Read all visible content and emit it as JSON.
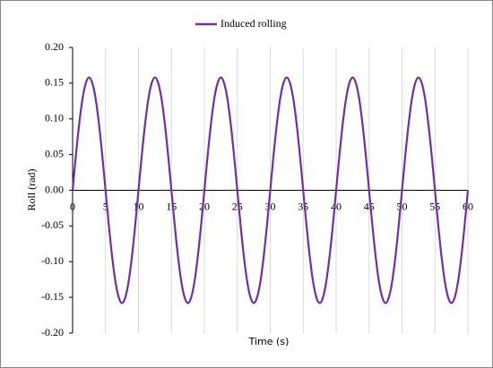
{
  "chart_data": {
    "type": "line",
    "x_label": "Time (s)",
    "y_label": "Roll (rad)",
    "legend": "top",
    "grid": "x",
    "series": [
      {
        "name": "Induced rolling",
        "color": "#7030a0",
        "values": [
          0,
          0.049,
          0.093,
          0.128,
          0.15,
          0.158,
          0.15,
          0.128,
          0.093,
          0.049,
          0,
          -0.049,
          -0.093,
          -0.128,
          -0.15,
          -0.158,
          -0.15,
          -0.128,
          -0.093,
          -0.049,
          0,
          0.049,
          0.093,
          0.128,
          0.15,
          0.158,
          0.15,
          0.128,
          0.093,
          0.049,
          0,
          -0.049,
          -0.093,
          -0.128,
          -0.15,
          -0.158,
          -0.15,
          -0.128,
          -0.093,
          -0.049,
          0,
          0.049,
          0.093,
          0.128,
          0.15,
          0.158,
          0.15,
          0.128,
          0.093,
          0.049,
          0,
          -0.049,
          -0.093,
          -0.128,
          -0.15,
          -0.158,
          -0.15,
          -0.128,
          -0.093,
          -0.049,
          0,
          0.049,
          0.093,
          0.128,
          0.15,
          0.158,
          0.15,
          0.128,
          0.093,
          0.049,
          0,
          -0.049,
          -0.093,
          -0.128,
          -0.15,
          -0.158,
          -0.15,
          -0.128,
          -0.093,
          -0.049,
          0,
          0.049,
          0.093,
          0.128,
          0.15,
          0.158,
          0.15,
          0.128,
          0.093,
          0.049,
          0,
          -0.049,
          -0.093,
          -0.128,
          -0.15,
          -0.158,
          -0.15,
          -0.128,
          -0.093,
          -0.049,
          0,
          0.049,
          0.093,
          0.128,
          0.15,
          0.158,
          0.15,
          0.128,
          0.093,
          0.049,
          0,
          -0.049,
          -0.093,
          -0.128,
          -0.15,
          -0.158,
          -0.15,
          -0.128,
          -0.093,
          -0.049,
          0
        ]
      }
    ],
    "x": [
      0,
      0.5,
      1,
      1.5,
      2,
      2.5,
      3,
      3.5,
      4,
      4.5,
      5,
      5.5,
      6,
      6.5,
      7,
      7.5,
      8,
      8.5,
      9,
      9.5,
      10,
      10.5,
      11,
      11.5,
      12,
      12.5,
      13,
      13.5,
      14,
      14.5,
      15,
      15.5,
      16,
      16.5,
      17,
      17.5,
      18,
      18.5,
      19,
      19.5,
      20,
      20.5,
      21,
      21.5,
      22,
      22.5,
      23,
      23.5,
      24,
      24.5,
      25,
      25.5,
      26,
      26.5,
      27,
      27.5,
      28,
      28.5,
      29,
      29.5,
      30,
      30.5,
      31,
      31.5,
      32,
      32.5,
      33,
      33.5,
      34,
      34.5,
      35,
      35.5,
      36,
      36.5,
      37,
      37.5,
      38,
      38.5,
      39,
      39.5,
      40,
      40.5,
      41,
      41.5,
      42,
      42.5,
      43,
      43.5,
      44,
      44.5,
      45,
      45.5,
      46,
      46.5,
      47,
      47.5,
      48,
      48.5,
      49,
      49.5,
      50,
      50.5,
      51,
      51.5,
      52,
      52.5,
      53,
      53.5,
      54,
      54.5,
      55,
      55.5,
      56,
      56.5,
      57,
      57.5,
      58,
      58.5,
      59,
      59.5,
      60
    ],
    "xlim": [
      0,
      60
    ],
    "xticks": [
      0,
      5,
      10,
      15,
      20,
      25,
      30,
      35,
      40,
      45,
      50,
      55,
      60
    ],
    "ylim": [
      -0.2,
      0.2
    ],
    "yticks": [
      {
        "value": 0.2,
        "label": "0.20"
      },
      {
        "value": 0.15,
        "label": "0.15"
      },
      {
        "value": 0.1,
        "label": "0.10"
      },
      {
        "value": 0.05,
        "label": "0.05"
      },
      {
        "value": 0,
        "label": "0.00"
      },
      {
        "value": -0.05,
        "label": "-0.05"
      },
      {
        "value": -0.1,
        "label": "-0.10"
      },
      {
        "value": -0.15,
        "label": "-0.15"
      },
      {
        "value": -0.2,
        "label": "-0.20"
      }
    ]
  }
}
